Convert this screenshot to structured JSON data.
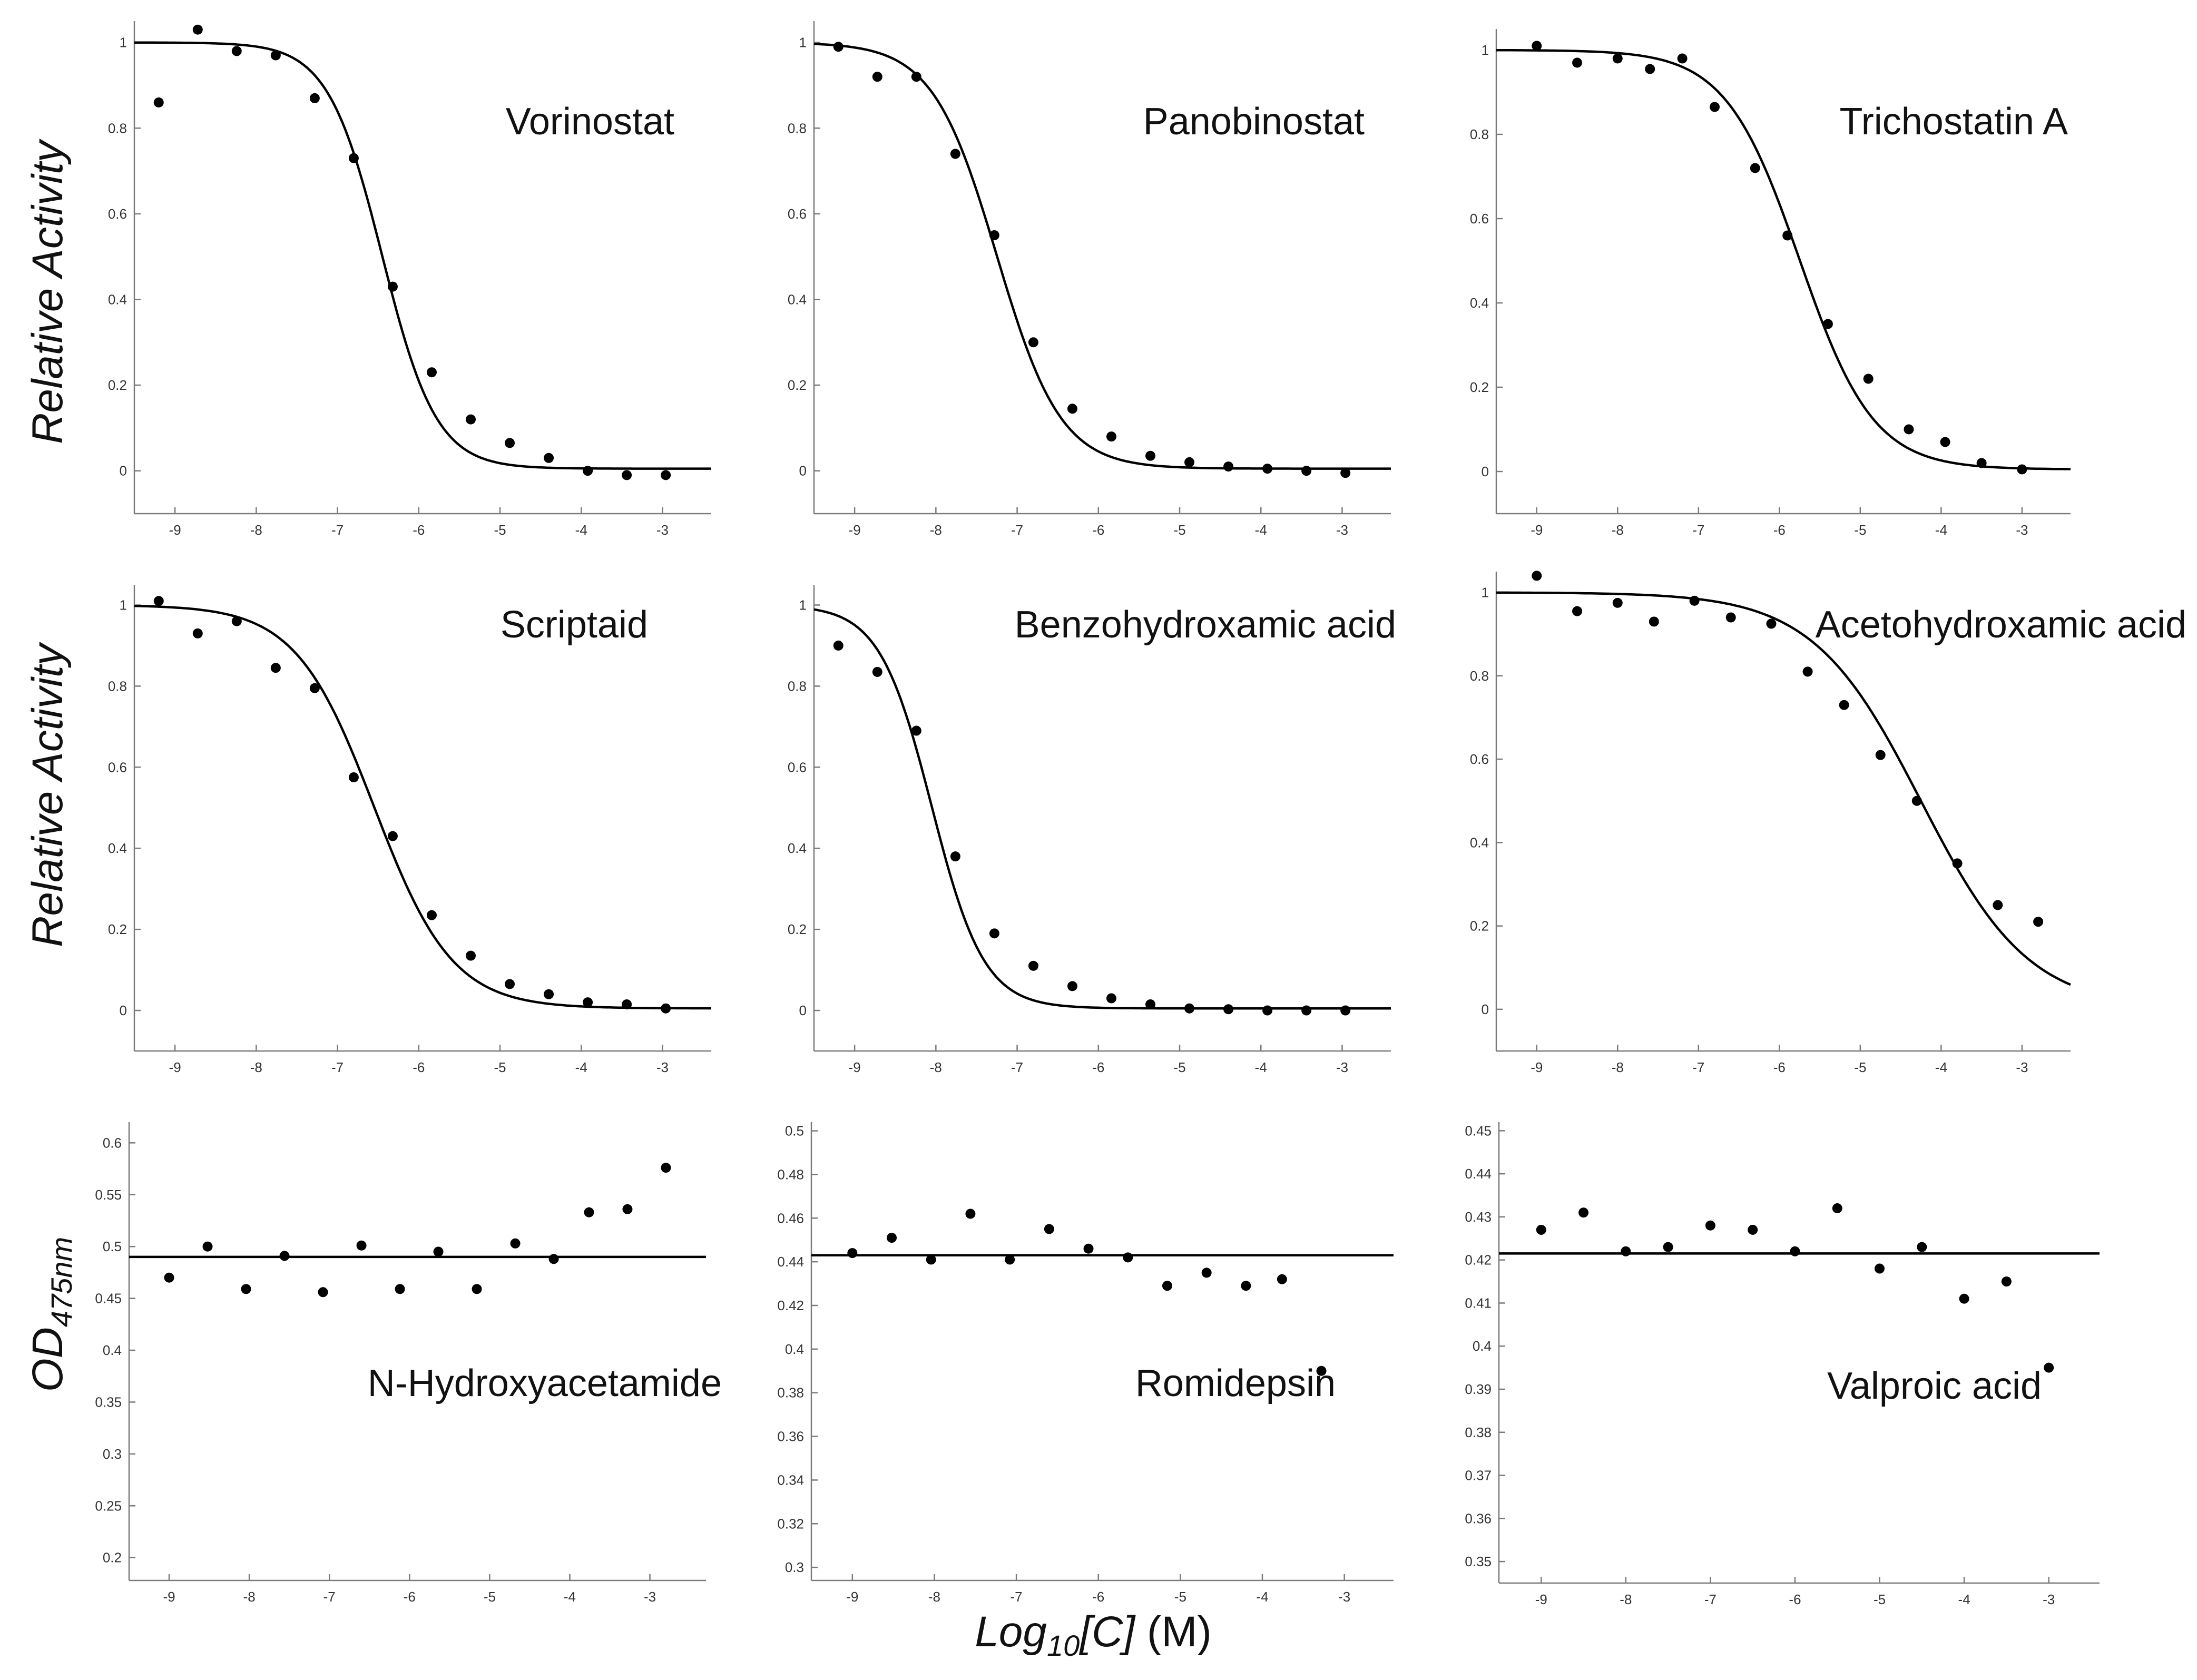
{
  "figure": {
    "ylabel_relative_activity": "Relative Activity",
    "ylabel_od_main": "OD",
    "ylabel_od_sub": "475nm",
    "xlabel_log": "Log",
    "xlabel_sub": "10",
    "xlabel_bracket": "[C]",
    "xlabel_unit": " (M)"
  },
  "chart_data": [
    {
      "type": "scatter",
      "title": "Vorinostat",
      "xlim": [
        -9.5,
        -2.4
      ],
      "ylim": [
        -0.1,
        1.05
      ],
      "xticks": [
        -9,
        -8,
        -7,
        -6,
        -5,
        -4,
        -3
      ],
      "yticks": [
        0,
        0.2,
        0.4,
        0.6,
        0.8,
        1
      ],
      "ytick_labels": [
        "0",
        "0.2",
        "0.4",
        "0.6",
        "0.8",
        "1"
      ],
      "x": [
        -9.2,
        -8.72,
        -8.24,
        -7.76,
        -7.28,
        -6.8,
        -6.32,
        -5.84,
        -5.36,
        -4.88,
        -4.4,
        -3.92,
        -3.44,
        -2.96
      ],
      "y": [
        0.86,
        1.03,
        0.98,
        0.97,
        0.87,
        0.73,
        0.43,
        0.23,
        0.12,
        0.065,
        0.03,
        0.0,
        -0.01,
        -0.01
      ],
      "fit": {
        "model": "sigmoid",
        "top": 1.0,
        "bottom": 0.005,
        "ec50": -6.45,
        "hill": 1.3
      }
    },
    {
      "type": "scatter",
      "title": "Panobinostat",
      "xlim": [
        -9.5,
        -2.4
      ],
      "ylim": [
        -0.1,
        1.05
      ],
      "xticks": [
        -9,
        -8,
        -7,
        -6,
        -5,
        -4,
        -3
      ],
      "yticks": [
        0,
        0.2,
        0.4,
        0.6,
        0.8,
        1
      ],
      "ytick_labels": [
        "0",
        "0.2",
        "0.4",
        "0.6",
        "0.8",
        "1"
      ],
      "x": [
        -9.2,
        -8.72,
        -8.24,
        -7.76,
        -7.28,
        -6.8,
        -6.32,
        -5.84,
        -5.36,
        -4.88,
        -4.4,
        -3.92,
        -3.44,
        -2.96
      ],
      "y": [
        0.99,
        0.92,
        0.92,
        0.74,
        0.55,
        0.3,
        0.145,
        0.08,
        0.035,
        0.02,
        0.01,
        0.005,
        0.0,
        -0.005
      ],
      "fit": {
        "model": "sigmoid",
        "top": 1.0,
        "bottom": 0.005,
        "ec50": -7.25,
        "hill": 1.1
      }
    },
    {
      "type": "scatter",
      "title": "Trichostatin A",
      "xlim": [
        -9.5,
        -2.4
      ],
      "ylim": [
        -0.1,
        1.05
      ],
      "xticks": [
        -9,
        -8,
        -7,
        -6,
        -5,
        -4,
        -3
      ],
      "yticks": [
        0,
        0.2,
        0.4,
        0.6,
        0.8,
        1
      ],
      "ytick_labels": [
        "0",
        "0.2",
        "0.4",
        "0.6",
        "0.8",
        "1"
      ],
      "x": [
        -9.0,
        -8.5,
        -8.0,
        -7.6,
        -7.2,
        -6.8,
        -6.3,
        -5.9,
        -5.4,
        -4.9,
        -4.4,
        -3.95,
        -3.5,
        -3.0
      ],
      "y": [
        1.01,
        0.97,
        0.98,
        0.955,
        0.98,
        0.865,
        0.72,
        0.56,
        0.35,
        0.22,
        0.1,
        0.07,
        0.02,
        0.005
      ],
      "fit": {
        "model": "sigmoid",
        "top": 1.0,
        "bottom": 0.005,
        "ec50": -5.75,
        "hill": 0.95
      }
    },
    {
      "type": "scatter",
      "title": "Scriptaid",
      "xlim": [
        -9.5,
        -2.4
      ],
      "ylim": [
        -0.1,
        1.05
      ],
      "xticks": [
        -9,
        -8,
        -7,
        -6,
        -5,
        -4,
        -3
      ],
      "yticks": [
        0,
        0.2,
        0.4,
        0.6,
        0.8,
        1
      ],
      "ytick_labels": [
        "0",
        "0.2",
        "0.4",
        "0.6",
        "0.8",
        "1"
      ],
      "x": [
        -9.2,
        -8.72,
        -8.24,
        -7.76,
        -7.28,
        -6.8,
        -6.32,
        -5.84,
        -5.36,
        -4.88,
        -4.4,
        -3.92,
        -3.44,
        -2.96
      ],
      "y": [
        1.01,
        0.93,
        0.96,
        0.845,
        0.795,
        0.575,
        0.43,
        0.235,
        0.135,
        0.065,
        0.04,
        0.02,
        0.015,
        0.005
      ],
      "fit": {
        "model": "sigmoid",
        "top": 1.0,
        "bottom": 0.005,
        "ec50": -6.55,
        "hill": 0.9
      }
    },
    {
      "type": "scatter",
      "title": "Benzohydroxamic acid",
      "xlim": [
        -9.5,
        -2.4
      ],
      "ylim": [
        -0.1,
        1.05
      ],
      "xticks": [
        -9,
        -8,
        -7,
        -6,
        -5,
        -4,
        -3
      ],
      "yticks": [
        0,
        0.2,
        0.4,
        0.6,
        0.8,
        1
      ],
      "ytick_labels": [
        "0",
        "0.2",
        "0.4",
        "0.6",
        "0.8",
        "1"
      ],
      "x": [
        -9.2,
        -8.72,
        -8.24,
        -7.76,
        -7.28,
        -6.8,
        -6.32,
        -5.84,
        -5.36,
        -4.88,
        -4.4,
        -3.92,
        -3.44,
        -2.96
      ],
      "y": [
        0.9,
        0.835,
        0.69,
        0.38,
        0.19,
        0.11,
        0.06,
        0.03,
        0.015,
        0.005,
        0.003,
        0.0,
        0.0,
        0.0
      ],
      "fit": {
        "model": "sigmoid",
        "top": 1.0,
        "bottom": 0.005,
        "ec50": -8.05,
        "hill": 1.35
      }
    },
    {
      "type": "scatter",
      "title": "Acetohydroxamic acid",
      "xlim": [
        -9.5,
        -2.4
      ],
      "ylim": [
        -0.1,
        1.05
      ],
      "xticks": [
        -9,
        -8,
        -7,
        -6,
        -5,
        -4,
        -3
      ],
      "yticks": [
        0,
        0.2,
        0.4,
        0.6,
        0.8,
        1
      ],
      "ytick_labels": [
        "0",
        "0.2",
        "0.4",
        "0.6",
        "0.8",
        "1"
      ],
      "x": [
        -9.0,
        -8.5,
        -8.0,
        -7.55,
        -7.05,
        -6.6,
        -6.1,
        -5.65,
        -5.2,
        -4.75,
        -4.3,
        -3.8,
        -3.3,
        -2.8
      ],
      "y": [
        1.04,
        0.955,
        0.975,
        0.93,
        0.98,
        0.94,
        0.925,
        0.81,
        0.73,
        0.61,
        0.5,
        0.35,
        0.25,
        0.21
      ],
      "fit": {
        "model": "sigmoid",
        "top": 1.0,
        "bottom": 0.0,
        "ec50": -4.25,
        "hill": 0.65
      }
    },
    {
      "type": "scatter",
      "title": "N-Hydroxyacetamide",
      "xlim": [
        -9.5,
        -2.3
      ],
      "ylim": [
        0.178,
        0.62
      ],
      "xticks": [
        -9,
        -8,
        -7,
        -6,
        -5,
        -4,
        -3
      ],
      "yticks": [
        0.2,
        0.25,
        0.3,
        0.35,
        0.4,
        0.45,
        0.5,
        0.55,
        0.6
      ],
      "ytick_labels": [
        "0.2",
        "0.25",
        "0.3",
        "0.35",
        "0.4",
        "0.45",
        "0.5",
        "0.55",
        "0.6"
      ],
      "x": [
        -9.0,
        -8.52,
        -8.04,
        -7.56,
        -7.08,
        -6.6,
        -6.12,
        -5.64,
        -5.16,
        -4.68,
        -4.2,
        -3.76,
        -3.28,
        -2.8
      ],
      "y": [
        0.47,
        0.5,
        0.459,
        0.491,
        0.456,
        0.501,
        0.459,
        0.495,
        0.459,
        0.503,
        0.488,
        0.533,
        0.536,
        0.576
      ],
      "fit": {
        "model": "flat",
        "value": 0.49
      }
    },
    {
      "type": "scatter",
      "title": "Romidepsin",
      "xlim": [
        -9.5,
        -2.4
      ],
      "ylim": [
        0.294,
        0.504
      ],
      "xticks": [
        -9,
        -8,
        -7,
        -6,
        -5,
        -4,
        -3
      ],
      "yticks": [
        0.3,
        0.32,
        0.34,
        0.36,
        0.38,
        0.4,
        0.42,
        0.44,
        0.46,
        0.48,
        0.5
      ],
      "ytick_labels": [
        "0.3",
        "0.32",
        "0.34",
        "0.36",
        "0.38",
        "0.4",
        "0.42",
        "0.44",
        "0.46",
        "0.48",
        "0.5"
      ],
      "x": [
        -9.0,
        -8.52,
        -8.04,
        -7.56,
        -7.08,
        -6.6,
        -6.12,
        -5.64,
        -5.16,
        -4.68,
        -4.2,
        -3.76,
        -3.28
      ],
      "y": [
        0.444,
        0.451,
        0.441,
        0.462,
        0.441,
        0.455,
        0.446,
        0.442,
        0.429,
        0.435,
        0.429,
        0.432,
        0.39
      ],
      "fit": {
        "model": "flat",
        "value": 0.443
      }
    },
    {
      "type": "scatter",
      "title": "Valproic acid",
      "xlim": [
        -9.5,
        -2.4
      ],
      "ylim": [
        0.345,
        0.452
      ],
      "xticks": [
        -9,
        -8,
        -7,
        -6,
        -5,
        -4,
        -3
      ],
      "yticks": [
        0.35,
        0.36,
        0.37,
        0.38,
        0.39,
        0.4,
        0.41,
        0.42,
        0.43,
        0.44,
        0.45
      ],
      "ytick_labels": [
        "0.35",
        "0.36",
        "0.37",
        "0.38",
        "0.39",
        "0.4",
        "0.41",
        "0.42",
        "0.43",
        "0.44",
        "0.45"
      ],
      "x": [
        -9.0,
        -8.5,
        -8.0,
        -7.5,
        -7.0,
        -6.5,
        -6.0,
        -5.5,
        -5.0,
        -4.5,
        -4.0,
        -3.5,
        -3.0
      ],
      "y": [
        0.427,
        0.431,
        0.422,
        0.423,
        0.428,
        0.427,
        0.422,
        0.432,
        0.418,
        0.423,
        0.411,
        0.415,
        0.395
      ],
      "fit": {
        "model": "flat",
        "value": 0.4215
      }
    }
  ]
}
